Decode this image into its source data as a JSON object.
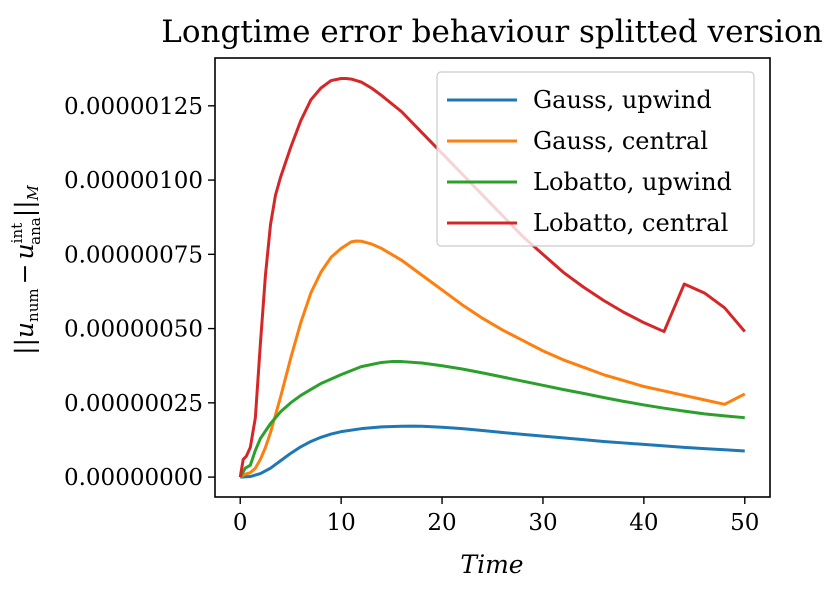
{
  "chart_data": {
    "type": "line",
    "title": "Longtime error behaviour splitted version",
    "xlabel": "Time",
    "ylabel_parts": {
      "open": "||",
      "var": "u",
      "sub_num": "num",
      "minus": "−",
      "sup_int": "int",
      "sub_ana": "ana",
      "close": "||",
      "norm_sub": "M"
    },
    "xlim": [
      -2.5,
      52.5
    ],
    "ylim": [
      -6.7e-08,
      1.411e-06
    ],
    "xticks": [
      0,
      10,
      20,
      30,
      40,
      50
    ],
    "xtick_labels": [
      "0",
      "10",
      "20",
      "30",
      "40",
      "50"
    ],
    "yticks": [
      0,
      2.5e-07,
      5e-07,
      7.5e-07,
      1e-06,
      1.25e-06
    ],
    "ytick_labels": [
      "0.00000000",
      "0.00000025",
      "0.00000050",
      "0.00000075",
      "0.00000100",
      "0.00000125"
    ],
    "legend_position": "top-right",
    "series": [
      {
        "name": "Gauss, upwind",
        "color": "#1f77b4",
        "x": [
          0,
          1,
          2,
          3,
          4,
          5,
          6,
          7,
          8,
          9,
          10,
          12,
          14,
          16,
          17,
          18,
          20,
          22,
          24,
          26,
          28,
          30,
          32,
          34,
          36,
          38,
          40,
          42,
          44,
          46,
          48,
          50
        ],
        "y": [
          0,
          2e-09,
          1.2e-08,
          3e-08,
          5.5e-08,
          8e-08,
          1.02e-07,
          1.2e-07,
          1.34e-07,
          1.45e-07,
          1.53e-07,
          1.63e-07,
          1.69e-07,
          1.71e-07,
          1.715e-07,
          1.71e-07,
          1.68e-07,
          1.63e-07,
          1.57e-07,
          1.5e-07,
          1.44e-07,
          1.38e-07,
          1.32e-07,
          1.26e-07,
          1.2e-07,
          1.15e-07,
          1.1e-07,
          1.05e-07,
          1e-07,
          9.6e-08,
          9.2e-08,
          8.8e-08
        ]
      },
      {
        "name": "Gauss, central",
        "color": "#ff7f0e",
        "x": [
          0,
          0.5,
          1,
          1.5,
          2,
          2.5,
          3,
          4,
          5,
          6,
          7,
          8,
          9,
          10,
          11,
          11.5,
          12,
          13,
          14,
          16,
          18,
          20,
          22,
          24,
          26,
          28,
          30,
          32,
          34,
          36,
          38,
          40,
          42,
          44,
          46,
          48,
          50
        ],
        "y": [
          0,
          1e-08,
          1.5e-08,
          3e-08,
          6e-08,
          1e-07,
          1.5e-07,
          2.7e-07,
          4e-07,
          5.2e-07,
          6.2e-07,
          6.9e-07,
          7.4e-07,
          7.7e-07,
          7.92e-07,
          7.95e-07,
          7.94e-07,
          7.85e-07,
          7.7e-07,
          7.3e-07,
          6.8e-07,
          6.3e-07,
          5.8e-07,
          5.35e-07,
          4.95e-07,
          4.6e-07,
          4.25e-07,
          3.95e-07,
          3.7e-07,
          3.45e-07,
          3.25e-07,
          3.05e-07,
          2.9e-07,
          2.75e-07,
          2.6e-07,
          2.45e-07,
          2.8e-07
        ]
      },
      {
        "name": "Lobatto, upwind",
        "color": "#2ca02c",
        "x": [
          0,
          0.5,
          1,
          1.5,
          2,
          3,
          4,
          5,
          6,
          7,
          8,
          10,
          12,
          14,
          15,
          16,
          18,
          20,
          22,
          24,
          26,
          28,
          30,
          32,
          34,
          36,
          38,
          40,
          42,
          44,
          46,
          48,
          50
        ],
        "y": [
          0,
          3e-08,
          4e-08,
          9e-08,
          1.3e-07,
          1.8e-07,
          2.2e-07,
          2.5e-07,
          2.75e-07,
          2.95e-07,
          3.15e-07,
          3.45e-07,
          3.72e-07,
          3.86e-07,
          3.89e-07,
          3.89e-07,
          3.84e-07,
          3.75e-07,
          3.64e-07,
          3.51e-07,
          3.37e-07,
          3.23e-07,
          3.09e-07,
          2.95e-07,
          2.82e-07,
          2.68e-07,
          2.55e-07,
          2.43e-07,
          2.32e-07,
          2.22e-07,
          2.13e-07,
          2.06e-07,
          2e-07
        ]
      },
      {
        "name": "Lobatto, central",
        "color": "#d62728",
        "x": [
          0,
          0.3,
          0.6,
          1,
          1.5,
          2,
          2.5,
          3,
          3.5,
          4,
          5,
          6,
          7,
          8,
          9,
          10,
          10.5,
          11,
          12,
          13,
          14,
          16,
          18,
          20,
          22,
          24,
          26,
          28,
          30,
          32,
          34,
          36,
          38,
          40,
          42,
          44,
          46,
          48,
          50
        ],
        "y": [
          0,
          6e-08,
          7e-08,
          1e-07,
          2e-07,
          4.5e-07,
          6.8e-07,
          8.5e-07,
          9.5e-07,
          1.01e-06,
          1.11e-06,
          1.2e-06,
          1.27e-06,
          1.31e-06,
          1.335e-06,
          1.342e-06,
          1.342e-06,
          1.34e-06,
          1.33e-06,
          1.31e-06,
          1.285e-06,
          1.23e-06,
          1.16e-06,
          1.09e-06,
          1.02e-06,
          9.5e-07,
          8.8e-07,
          8.1e-07,
          7.5e-07,
          6.9e-07,
          6.4e-07,
          5.95e-07,
          5.55e-07,
          5.2e-07,
          4.9e-07,
          6.5e-07,
          6.2e-07,
          5.7e-07,
          4.9e-07
        ]
      }
    ]
  }
}
